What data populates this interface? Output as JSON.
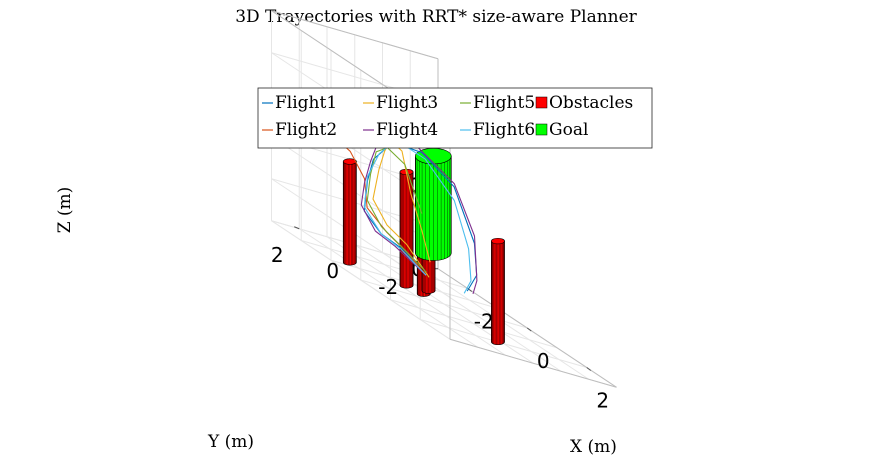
{
  "chart_data": {
    "type": "line",
    "title": "3D Trayectories with RRT* size-aware Planner",
    "xlabel": "X (m)",
    "ylabel": "Y (m)",
    "zlabel": "Z (m)",
    "xlim": [
      -3,
      3
    ],
    "ylim": [
      -3,
      3
    ],
    "zlim": [
      0,
      2.5
    ],
    "x_ticks": [
      "-2",
      "0",
      "2"
    ],
    "y_ticks": [
      "2",
      "0",
      "-2"
    ],
    "z_ticks": [
      "0",
      "1",
      "2"
    ],
    "grid": true,
    "legend_position": "top",
    "legend": [
      "Flight1",
      "Flight3",
      "Flight5",
      "Obstacles",
      "Flight2",
      "Flight4",
      "Flight6",
      "Goal"
    ],
    "colors": {
      "Flight1": "#0072BD",
      "Flight2": "#D95319",
      "Flight3": "#EDB120",
      "Flight4": "#7E2F8E",
      "Flight5": "#77AC30",
      "Flight6": "#4DBEEE",
      "Obstacles": "#ff0000",
      "Goal": "#00ff00"
    },
    "obstacles": [
      {
        "name": "obstacle-1",
        "x": -1.3,
        "y": 2.0,
        "radius": 0.22,
        "height": 1.2
      },
      {
        "name": "obstacle-2",
        "x": -0.7,
        "y": 0.6,
        "radius": 0.22,
        "height": 1.35
      },
      {
        "name": "obstacle-3",
        "x": -0.4,
        "y": 0.3,
        "radius": 0.22,
        "height": 1.25
      },
      {
        "name": "obstacle-4",
        "x": -0.8,
        "y": -0.3,
        "radius": 0.22,
        "height": 1.25
      },
      {
        "name": "obstacle-5",
        "x": 2.0,
        "y": 0.2,
        "radius": 0.22,
        "height": 1.2
      }
    ],
    "goal": {
      "x": 0.2,
      "y": 0.6,
      "radius": 0.6,
      "z0": 0.6,
      "z1": 1.75
    },
    "series": [
      {
        "name": "Flight1",
        "points": [
          [
            -0.6,
            0.0,
            0.2
          ],
          [
            -0.8,
            0.6,
            0.4
          ],
          [
            -0.9,
            1.3,
            0.5
          ],
          [
            -1.0,
            1.8,
            0.7
          ],
          [
            -0.8,
            1.9,
            1.1
          ],
          [
            -0.6,
            1.9,
            1.4
          ],
          [
            -0.4,
            1.4,
            1.7
          ],
          [
            0.2,
            1.0,
            1.75
          ],
          [
            0.9,
            0.6,
            1.55
          ],
          [
            1.3,
            0.3,
            1.0
          ],
          [
            1.1,
            0.0,
            0.6
          ],
          [
            0.5,
            -0.3,
            0.3
          ]
        ]
      },
      {
        "name": "Flight2",
        "points": [
          [
            -0.6,
            0.0,
            0.2
          ],
          [
            -0.7,
            0.6,
            0.4
          ],
          [
            -0.8,
            1.2,
            0.55
          ],
          [
            -1.0,
            1.7,
            0.75
          ],
          [
            -0.9,
            1.9,
            1.1
          ],
          [
            -1.1,
            2.2,
            1.35
          ],
          [
            -1.3,
            2.6,
            1.45
          ],
          [
            -1.5,
            2.9,
            1.4
          ]
        ]
      },
      {
        "name": "Flight3",
        "points": [
          [
            -0.5,
            0.0,
            0.2
          ],
          [
            -0.6,
            0.7,
            0.5
          ],
          [
            -0.7,
            1.3,
            0.65
          ],
          [
            -0.8,
            1.7,
            0.9
          ],
          [
            -0.6,
            1.7,
            1.3
          ],
          [
            -0.5,
            1.6,
            1.55
          ],
          [
            -0.5,
            1.4,
            1.7
          ],
          [
            -0.2,
            1.3,
            1.65
          ],
          [
            -0.1,
            1.1,
            1.2
          ],
          [
            0.0,
            0.8,
            0.8
          ],
          [
            0.0,
            0.5,
            0.45
          ]
        ]
      },
      {
        "name": "Flight4",
        "points": [
          [
            -0.6,
            0.0,
            0.2
          ],
          [
            -0.9,
            0.8,
            0.4
          ],
          [
            -1.0,
            1.4,
            0.5
          ],
          [
            -1.1,
            1.8,
            0.75
          ],
          [
            -0.9,
            1.9,
            1.05
          ],
          [
            -0.7,
            1.9,
            1.35
          ],
          [
            -0.6,
            1.7,
            1.65
          ],
          [
            0.1,
            1.1,
            1.8
          ],
          [
            1.0,
            0.7,
            1.6
          ],
          [
            1.4,
            0.4,
            1.1
          ],
          [
            1.2,
            0.1,
            0.55
          ],
          [
            0.6,
            -0.4,
            0.3
          ]
        ]
      },
      {
        "name": "Flight5",
        "points": [
          [
            -0.5,
            0.1,
            0.25
          ],
          [
            -0.7,
            0.8,
            0.45
          ],
          [
            -0.8,
            1.4,
            0.6
          ],
          [
            -0.9,
            1.8,
            0.85
          ],
          [
            -0.7,
            1.9,
            1.2
          ],
          [
            -0.6,
            1.8,
            1.5
          ],
          [
            -0.5,
            1.5,
            1.6
          ],
          [
            -0.2,
            1.2,
            1.5
          ],
          [
            0.0,
            0.8,
            1.0
          ]
        ]
      },
      {
        "name": "Flight6",
        "points": [
          [
            -0.6,
            0.0,
            0.2
          ],
          [
            -0.8,
            0.7,
            0.4
          ],
          [
            -0.9,
            1.3,
            0.5
          ],
          [
            -1.0,
            1.8,
            0.75
          ],
          [
            -0.8,
            1.9,
            1.15
          ],
          [
            -0.5,
            1.8,
            1.5
          ],
          [
            -0.3,
            1.4,
            1.75
          ],
          [
            0.3,
            1.0,
            1.7
          ],
          [
            1.0,
            0.7,
            1.4
          ],
          [
            1.2,
            0.4,
            0.9
          ],
          [
            1.0,
            0.1,
            0.5
          ],
          [
            0.4,
            -0.3,
            0.25
          ]
        ]
      }
    ]
  }
}
